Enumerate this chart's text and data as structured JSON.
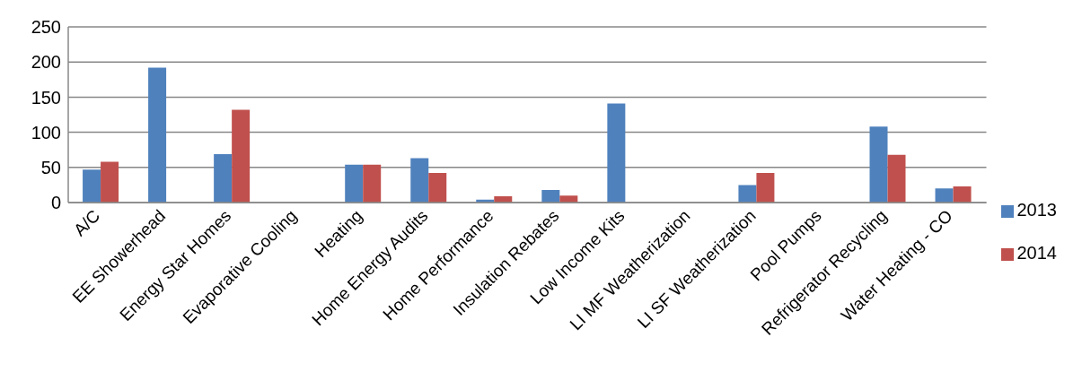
{
  "chart_data": {
    "type": "bar",
    "categories": [
      "A/C",
      "EE Showerhead",
      "Energy Star Homes",
      "Evaporative Cooling",
      "Heating",
      "Home Energy Audits",
      "Home Performance",
      "Insulation Rebates",
      "Low Income Kits",
      "LI MF Weatherization",
      "LI SF Weatherization",
      "Pool Pumps",
      "Refrigerator Recycling",
      "Water Heating - CO"
    ],
    "series": [
      {
        "name": "2013",
        "color": "#4f81bd",
        "values": [
          47,
          192,
          69,
          0,
          54,
          63,
          4,
          18,
          141,
          0,
          25,
          0,
          108,
          20
        ]
      },
      {
        "name": "2014",
        "color": "#c0504d",
        "values": [
          58,
          0,
          132,
          0,
          54,
          42,
          9,
          10,
          0,
          null,
          42,
          null,
          68,
          23
        ]
      }
    ],
    "ylim": [
      0,
      250
    ],
    "yticks": [
      0,
      50,
      100,
      150,
      200,
      250
    ],
    "grid": "y",
    "legend": "right"
  }
}
